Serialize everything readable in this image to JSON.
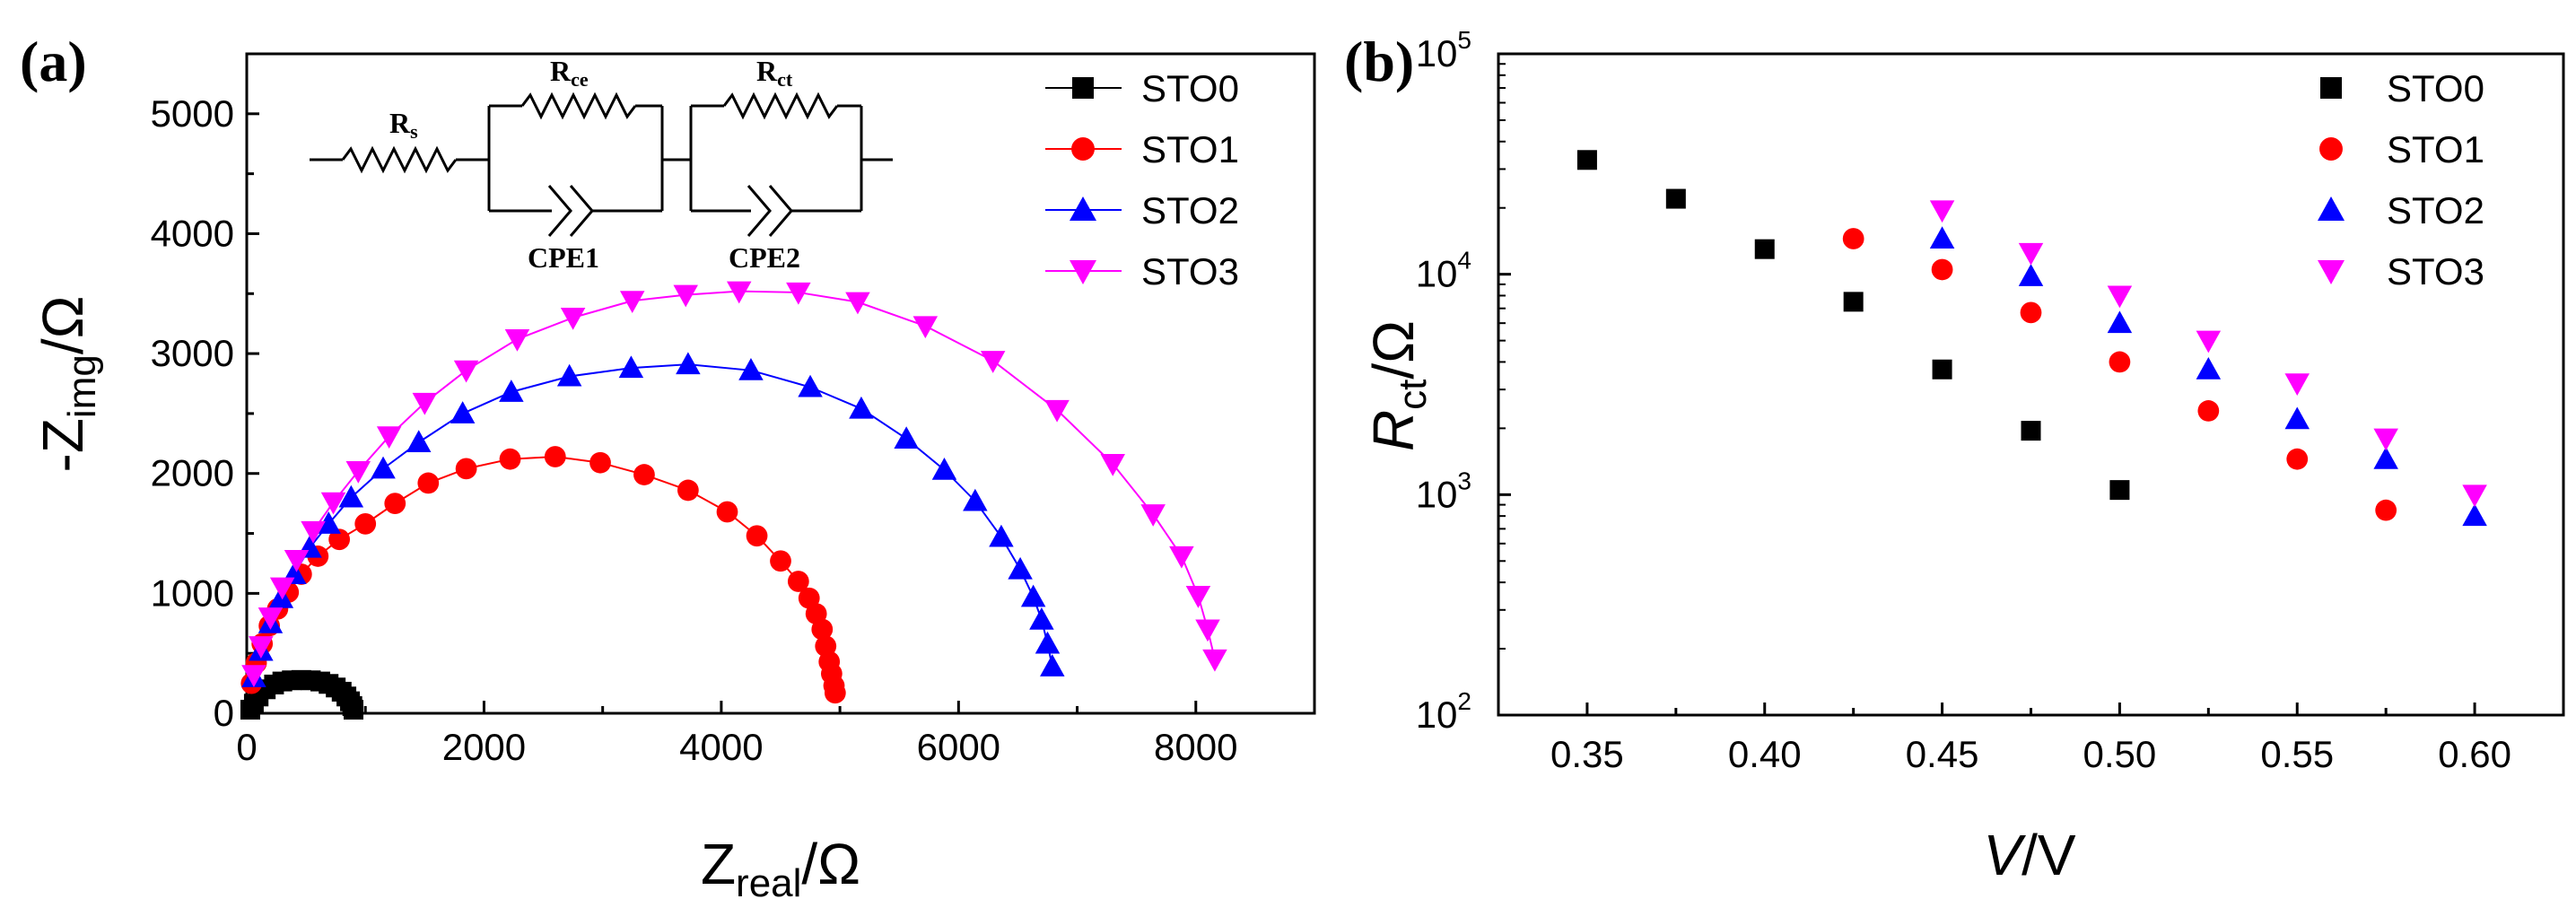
{
  "chart_data": [
    {
      "type": "scatter",
      "panel_label": "(a)",
      "xlabel_main": "Z",
      "xlabel_sub": "real",
      "xlabel_unit": "/Ω",
      "ylabel_prefix": "-Z",
      "ylabel_sub": "img",
      "ylabel_unit": "/Ω",
      "xlim": [
        0,
        9000
      ],
      "ylim": [
        0,
        5500
      ],
      "xticks": [
        "0",
        "2000",
        "4000",
        "6000",
        "8000"
      ],
      "yticks": [
        "0",
        "1000",
        "2000",
        "3000",
        "4000",
        "5000"
      ],
      "legend": [
        "STO0",
        "STO1",
        "STO2",
        "STO3"
      ],
      "circuit_labels": {
        "rs_main": "R",
        "rs_sub": "s",
        "rce_main": "R",
        "rce_sub": "ce",
        "rct_main": "R",
        "rct_sub": "ct",
        "cpe1": "CPE1",
        "cpe2": "CPE2"
      },
      "series": [
        {
          "name": "STO0",
          "marker": "square",
          "color": "#000000",
          "x": [
            30,
            60,
            100,
            160,
            230,
            300,
            380,
            460,
            540,
            620,
            690,
            750,
            800,
            840,
            870,
            890,
            900
          ],
          "y": [
            30,
            80,
            140,
            200,
            240,
            265,
            275,
            278,
            275,
            265,
            245,
            215,
            180,
            140,
            100,
            60,
            30
          ]
        },
        {
          "name": "STO1",
          "marker": "circle",
          "color": "#ff0000",
          "x": [
            40,
            80,
            130,
            190,
            260,
            350,
            460,
            600,
            780,
            1000,
            1250,
            1530,
            1850,
            2220,
            2600,
            2980,
            3350,
            3720,
            4050,
            4300,
            4500,
            4650,
            4740,
            4800,
            4850,
            4880,
            4910,
            4930,
            4950,
            4960
          ],
          "y": [
            250,
            420,
            580,
            730,
            870,
            1010,
            1160,
            1310,
            1450,
            1580,
            1750,
            1920,
            2040,
            2120,
            2140,
            2090,
            1990,
            1860,
            1680,
            1480,
            1270,
            1100,
            960,
            830,
            700,
            560,
            430,
            330,
            230,
            170
          ]
        },
        {
          "name": "STO2",
          "marker": "triangle-up",
          "color": "#0000ff",
          "x": [
            60,
            120,
            200,
            290,
            400,
            530,
            690,
            880,
            1150,
            1450,
            1820,
            2230,
            2720,
            3240,
            3720,
            4250,
            4750,
            5180,
            5560,
            5880,
            6140,
            6360,
            6520,
            6630,
            6700,
            6750,
            6790
          ],
          "y": [
            300,
            520,
            750,
            960,
            1160,
            1380,
            1580,
            1800,
            2040,
            2260,
            2500,
            2680,
            2810,
            2880,
            2910,
            2860,
            2720,
            2540,
            2290,
            2030,
            1770,
            1470,
            1200,
            970,
            780,
            580,
            390
          ]
        },
        {
          "name": "STO3",
          "marker": "triangle-down",
          "color": "#ff00ff",
          "x": [
            60,
            120,
            200,
            300,
            420,
            560,
            730,
            940,
            1200,
            1500,
            1850,
            2280,
            2750,
            3250,
            3700,
            4150,
            4650,
            5150,
            5720,
            6290,
            6830,
            7300,
            7640,
            7880,
            8020,
            8100,
            8160
          ],
          "y": [
            320,
            560,
            800,
            1050,
            1280,
            1520,
            1760,
            2020,
            2310,
            2590,
            2860,
            3120,
            3300,
            3440,
            3490,
            3520,
            3510,
            3430,
            3230,
            2940,
            2530,
            2080,
            1660,
            1310,
            980,
            700,
            450
          ]
        }
      ]
    },
    {
      "type": "scatter",
      "panel_label": "(b)",
      "xlabel_main": "V",
      "xlabel_unit": "/V",
      "ylabel_main": "R",
      "ylabel_sub": "ct",
      "ylabel_unit": "/Ω",
      "yscale": "log",
      "xlim": [
        0.325,
        0.625
      ],
      "ylim": [
        100,
        100000
      ],
      "xticks": [
        "0.35",
        "0.40",
        "0.45",
        "0.50",
        "0.55",
        "0.60"
      ],
      "yticks": [
        {
          "base": "10",
          "exp": "2"
        },
        {
          "base": "10",
          "exp": "3"
        },
        {
          "base": "10",
          "exp": "4"
        },
        {
          "base": "10",
          "exp": "5"
        }
      ],
      "legend": [
        "STO0",
        "STO1",
        "STO2",
        "STO3"
      ],
      "series": [
        {
          "name": "STO0",
          "marker": "square",
          "color": "#000000",
          "x": [
            0.35,
            0.375,
            0.4,
            0.425,
            0.45,
            0.475,
            0.5
          ],
          "y": [
            33000,
            22000,
            13000,
            7500,
            3700,
            1950,
            1050
          ]
        },
        {
          "name": "STO1",
          "marker": "circle",
          "color": "#ff0000",
          "x": [
            0.425,
            0.45,
            0.475,
            0.5,
            0.525,
            0.55,
            0.575
          ],
          "y": [
            14500,
            10500,
            6700,
            4000,
            2400,
            1450,
            850
          ]
        },
        {
          "name": "STO2",
          "marker": "triangle-up",
          "color": "#0000ff",
          "x": [
            0.45,
            0.475,
            0.5,
            0.525,
            0.55,
            0.575,
            0.6
          ],
          "y": [
            14500,
            9800,
            6000,
            3700,
            2200,
            1450,
            800
          ]
        },
        {
          "name": "STO3",
          "marker": "triangle-down",
          "color": "#ff00ff",
          "x": [
            0.45,
            0.475,
            0.5,
            0.525,
            0.55,
            0.575,
            0.6
          ],
          "y": [
            19500,
            12500,
            8000,
            5000,
            3200,
            1800,
            1000
          ]
        }
      ]
    }
  ]
}
